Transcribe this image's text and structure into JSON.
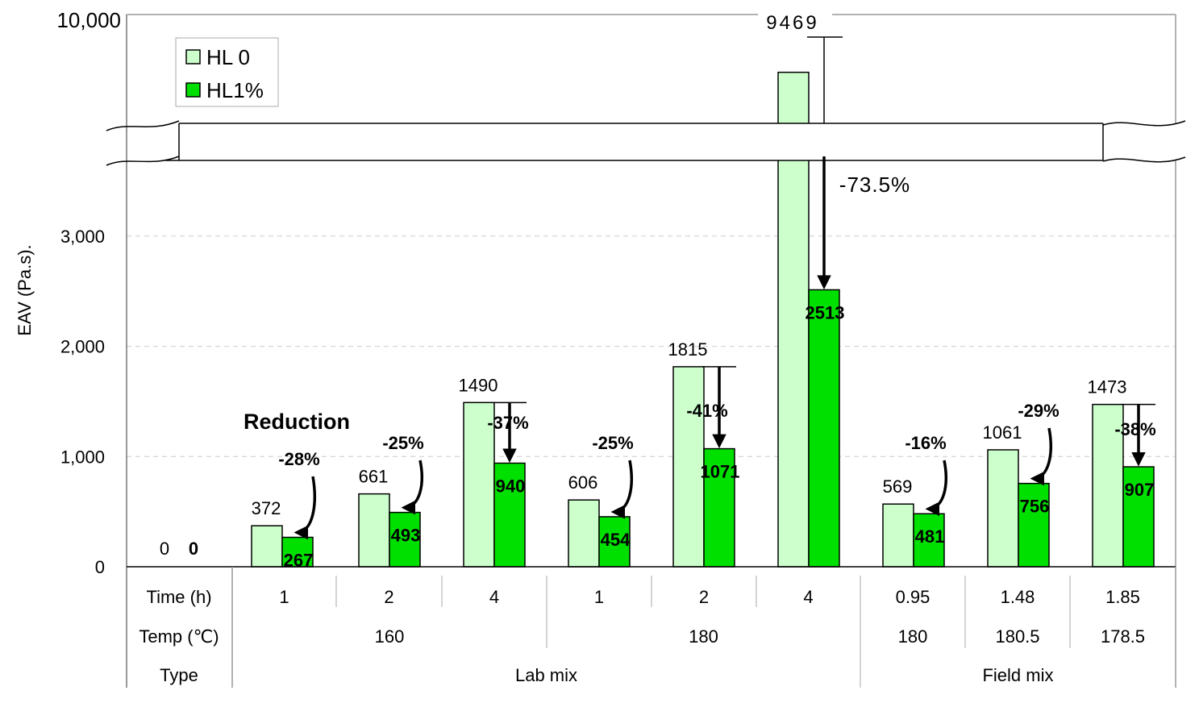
{
  "chart_data": {
    "type": "bar",
    "ylabel": "EAV (Pa.s).",
    "y_ticks": [
      "0",
      "1,000",
      "2,000",
      "3,000"
    ],
    "y_top_tick": "10,000",
    "y_axis_break": true,
    "legend": {
      "position": "top-left",
      "entries": [
        "HL 0",
        "HL1%"
      ]
    },
    "colors": {
      "hl0": "#ccffcc",
      "hl1": "#00e000",
      "grid": "#cccccc"
    },
    "series": [
      {
        "name": "HL 0",
        "values": [
          0,
          372,
          661,
          1490,
          606,
          1815,
          9469,
          569,
          1061,
          1473
        ],
        "labels": [
          "0",
          "372",
          "661",
          "1490",
          "606",
          "1815",
          "9469",
          "569",
          "1061",
          "1473"
        ]
      },
      {
        "name": "HL1%",
        "values": [
          0,
          267,
          493,
          940,
          454,
          1071,
          2513,
          481,
          756,
          907
        ],
        "labels": [
          "0",
          "267",
          "493",
          "940",
          "454",
          "1071",
          "2513",
          "481",
          "756",
          "907"
        ]
      }
    ],
    "reductions": [
      "",
      "-28%",
      "-25%",
      "-37%",
      "-25%",
      "-41%",
      "-73.5%",
      "-16%",
      "-29%",
      "-38%"
    ],
    "annotation": "Reduction",
    "table": {
      "row_headers": [
        "Time (h)",
        "Temp (℃)",
        "Type"
      ],
      "time": [
        "1",
        "2",
        "4",
        "1",
        "2",
        "4",
        "0.95",
        "1.48",
        "1.85"
      ],
      "temp": [
        {
          "label": "160",
          "span": [
            1,
            3
          ]
        },
        {
          "label": "180",
          "span": [
            4,
            6
          ]
        },
        {
          "label": "180",
          "span": [
            7,
            7
          ]
        },
        {
          "label": "180.5",
          "span": [
            8,
            8
          ]
        },
        {
          "label": "178.5",
          "span": [
            9,
            9
          ]
        }
      ],
      "type": [
        {
          "label": "Lab mix",
          "span": [
            1,
            6
          ]
        },
        {
          "label": "Field mix",
          "span": [
            7,
            9
          ]
        }
      ]
    }
  }
}
